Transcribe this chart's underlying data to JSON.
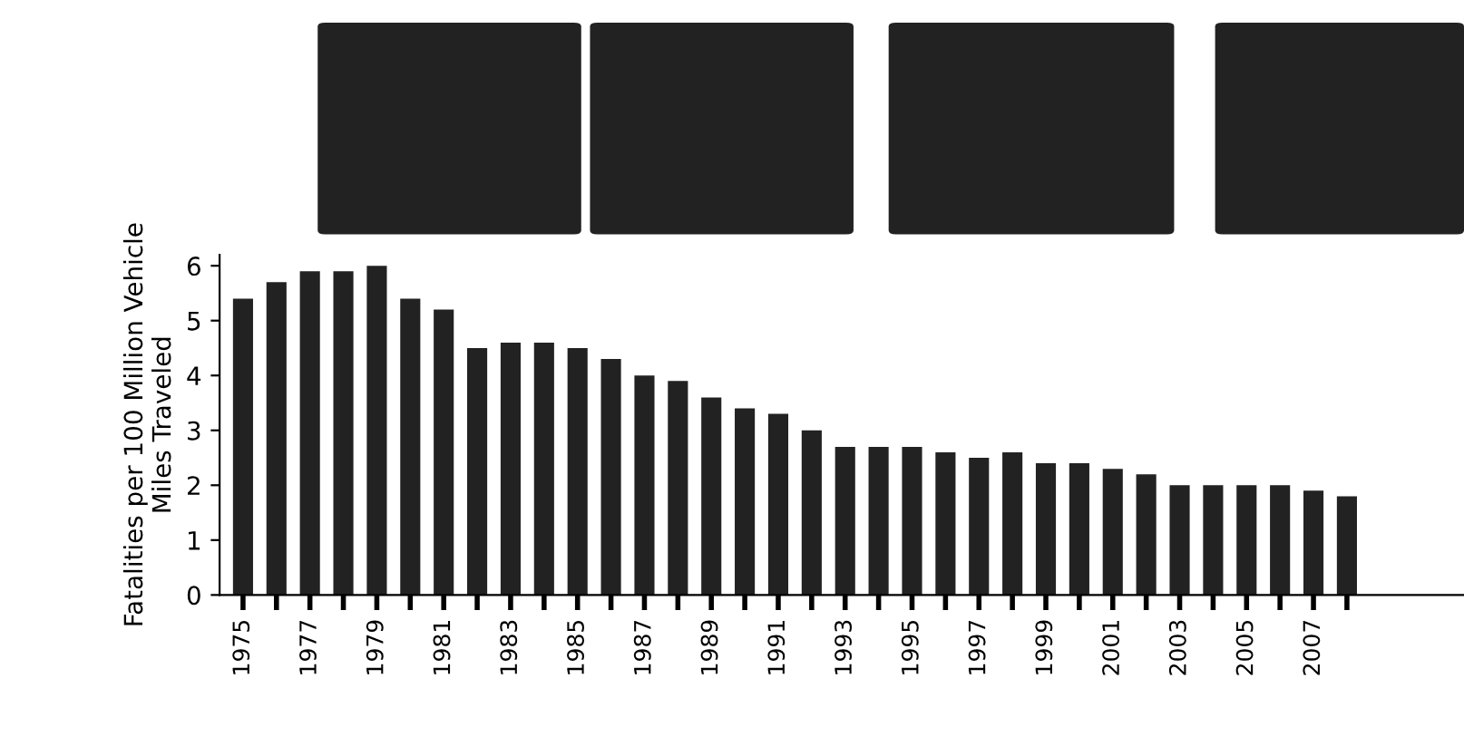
{
  "chart_data": {
    "type": "bar",
    "ylabel": "Fatalities per 100 Million Vehicle\nMiles Traveled",
    "categories": [
      "1975",
      null,
      "1977",
      null,
      "1979",
      null,
      "1981",
      null,
      "1983",
      null,
      "1985",
      null,
      "1987",
      null,
      "1989",
      null,
      "1991",
      null,
      "1993",
      null,
      "1995",
      null,
      "1997",
      null,
      "1999",
      null,
      "2001",
      null,
      "2003",
      null,
      "2005",
      null,
      "2007",
      null
    ],
    "values": [
      5.4,
      5.7,
      5.9,
      5.9,
      6.0,
      5.4,
      5.2,
      4.5,
      4.6,
      4.6,
      4.5,
      4.3,
      4.0,
      3.9,
      3.6,
      3.4,
      3.3,
      3.0,
      2.7,
      2.7,
      2.7,
      2.6,
      2.5,
      2.6,
      2.4,
      2.4,
      2.3,
      2.2,
      2.0,
      2.0,
      2.0,
      2.0,
      1.9,
      1.8
    ],
    "color": "#222222",
    "ylim": [
      0,
      6.2
    ],
    "yticks": [
      0,
      1,
      2,
      3,
      4,
      5,
      6
    ],
    "grid": false,
    "legend": false
  }
}
